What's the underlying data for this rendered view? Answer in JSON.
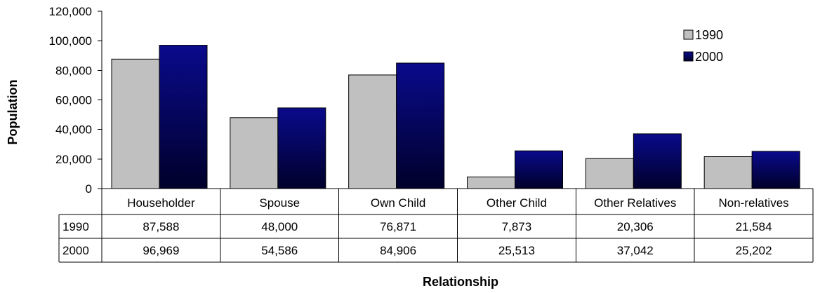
{
  "chart_data": {
    "type": "bar",
    "categories": [
      "Householder",
      "Spouse",
      "Own Child",
      "Other Child",
      "Other Relatives",
      "Non-relatives"
    ],
    "series": [
      {
        "name": "1990",
        "values": [
          87588,
          48000,
          76871,
          7873,
          20306,
          21584
        ],
        "display": [
          "87,588",
          "48,000",
          "76,871",
          "7,873",
          "20,306",
          "21,584"
        ]
      },
      {
        "name": "2000",
        "values": [
          96969,
          54586,
          84906,
          25513,
          37042,
          25202
        ],
        "display": [
          "96,969",
          "54,586",
          "84,906",
          "25,513",
          "37,042",
          "25,202"
        ]
      }
    ],
    "xlabel": "Relationship",
    "ylabel": "Population",
    "ylim": [
      0,
      120000
    ],
    "yticks": [
      "0",
      "20,000",
      "40,000",
      "60,000",
      "80,000",
      "100,000",
      "120,000"
    ],
    "grid": false,
    "legend": "top-right",
    "data_table": true,
    "colors": {
      "1990": "#c0c0c0",
      "2000": "#000080"
    }
  }
}
